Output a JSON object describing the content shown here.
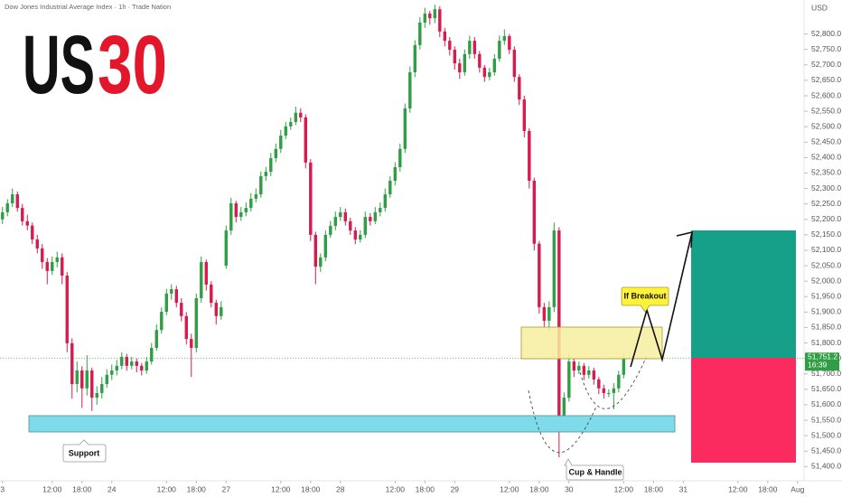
{
  "chart_data": {
    "type": "candlestick",
    "title": "Dow Jones Industrial Average Index · 1h · Trade Nation",
    "logo": {
      "part1": "US",
      "part2": "30"
    },
    "currency": "USD",
    "up_color": "#2f9e44",
    "down_color": "#d81b4f",
    "candles": [
      [
        52200,
        52240,
        52185,
        52223
      ],
      [
        52223,
        52265,
        52210,
        52252
      ],
      [
        52252,
        52300,
        52240,
        52281
      ],
      [
        52281,
        52290,
        52225,
        52237
      ],
      [
        52237,
        52250,
        52180,
        52194
      ],
      [
        52194,
        52215,
        52165,
        52180
      ],
      [
        52180,
        52190,
        52120,
        52135
      ],
      [
        52135,
        52150,
        52090,
        52106
      ],
      [
        52106,
        52120,
        52040,
        52062
      ],
      [
        52062,
        52075,
        51990,
        52033
      ],
      [
        52033,
        52080,
        52020,
        52062
      ],
      [
        52062,
        52095,
        52045,
        52077
      ],
      [
        52077,
        52090,
        51990,
        52018
      ],
      [
        52018,
        52030,
        51770,
        51799
      ],
      [
        51799,
        51815,
        51620,
        51667
      ],
      [
        51667,
        51740,
        51640,
        51711
      ],
      [
        51711,
        51725,
        51590,
        51653
      ],
      [
        51653,
        51760,
        51630,
        51711
      ],
      [
        51711,
        51720,
        51580,
        51623
      ],
      [
        51623,
        51660,
        51600,
        51638
      ],
      [
        51638,
        51690,
        51620,
        51667
      ],
      [
        51667,
        51715,
        51655,
        51697
      ],
      [
        51697,
        51730,
        51680,
        51711
      ],
      [
        51711,
        51745,
        51695,
        51726
      ],
      [
        51726,
        51770,
        51715,
        51755
      ],
      [
        51755,
        51765,
        51710,
        51726
      ],
      [
        51726,
        51755,
        51715,
        51740
      ],
      [
        51740,
        51750,
        51705,
        51726
      ],
      [
        51726,
        51735,
        51695,
        51711
      ],
      [
        51711,
        51755,
        51700,
        51740
      ],
      [
        51740,
        51800,
        51730,
        51784
      ],
      [
        51784,
        51860,
        51775,
        51842
      ],
      [
        51842,
        51915,
        51830,
        51901
      ],
      [
        51901,
        51975,
        51890,
        51960
      ],
      [
        51960,
        51990,
        51940,
        51974
      ],
      [
        51974,
        51985,
        51915,
        51930
      ],
      [
        51930,
        51945,
        51870,
        51887
      ],
      [
        51887,
        51900,
        51795,
        51813
      ],
      [
        51813,
        51830,
        51690,
        51784
      ],
      [
        51784,
        51960,
        51770,
        51945
      ],
      [
        51945,
        52080,
        51930,
        52062
      ],
      [
        52062,
        52070,
        51970,
        51989
      ],
      [
        51989,
        52000,
        51915,
        51930
      ],
      [
        51930,
        51940,
        51860,
        51887
      ],
      [
        51887,
        51935,
        51875,
        51916
      ],
      [
        52050,
        52180,
        52040,
        52164
      ],
      [
        52164,
        52270,
        52150,
        52252
      ],
      [
        52252,
        52260,
        52190,
        52208
      ],
      [
        52208,
        52240,
        52195,
        52223
      ],
      [
        52223,
        52255,
        52210,
        52237
      ],
      [
        52237,
        52285,
        52225,
        52267
      ],
      [
        52267,
        52300,
        52255,
        52281
      ],
      [
        52281,
        52355,
        52270,
        52340
      ],
      [
        52340,
        52370,
        52325,
        52354
      ],
      [
        52354,
        52415,
        52340,
        52398
      ],
      [
        52398,
        52445,
        52385,
        52428
      ],
      [
        52428,
        52490,
        52415,
        52471
      ],
      [
        52471,
        52515,
        52460,
        52501
      ],
      [
        52501,
        52530,
        52490,
        52515
      ],
      [
        52515,
        52565,
        52505,
        52545
      ],
      [
        52545,
        52560,
        52515,
        52530
      ],
      [
        52530,
        52540,
        52365,
        52384
      ],
      [
        52384,
        52395,
        52130,
        52150
      ],
      [
        52150,
        52160,
        51990,
        52047
      ],
      [
        52047,
        52090,
        52030,
        52077
      ],
      [
        52077,
        52165,
        52065,
        52150
      ],
      [
        52150,
        52195,
        52140,
        52179
      ],
      [
        52179,
        52225,
        52165,
        52208
      ],
      [
        52208,
        52240,
        52195,
        52223
      ],
      [
        52223,
        52235,
        52180,
        52194
      ],
      [
        52194,
        52205,
        52150,
        52164
      ],
      [
        52164,
        52175,
        52120,
        52135
      ],
      [
        52135,
        52165,
        52125,
        52150
      ],
      [
        52150,
        52225,
        52140,
        52208
      ],
      [
        52208,
        52220,
        52180,
        52194
      ],
      [
        52194,
        52240,
        52185,
        52223
      ],
      [
        52223,
        52255,
        52210,
        52237
      ],
      [
        52237,
        52300,
        52225,
        52281
      ],
      [
        52281,
        52340,
        52270,
        52325
      ],
      [
        52325,
        52385,
        52310,
        52369
      ],
      [
        52369,
        52445,
        52355,
        52428
      ],
      [
        52428,
        52575,
        52415,
        52559
      ],
      [
        52559,
        52695,
        52545,
        52676
      ],
      [
        52676,
        52780,
        52660,
        52764
      ],
      [
        52764,
        52855,
        52750,
        52837
      ],
      [
        52837,
        52885,
        52820,
        52866
      ],
      [
        52866,
        52875,
        52830,
        52851
      ],
      [
        52851,
        52895,
        52835,
        52880
      ],
      [
        52880,
        52890,
        52790,
        52808
      ],
      [
        52808,
        52820,
        52760,
        52778
      ],
      [
        52778,
        52790,
        52730,
        52749
      ],
      [
        52749,
        52760,
        52685,
        52705
      ],
      [
        52705,
        52720,
        52655,
        52676
      ],
      [
        52676,
        52750,
        52665,
        52735
      ],
      [
        52735,
        52795,
        52720,
        52778
      ],
      [
        52778,
        52790,
        52720,
        52735
      ],
      [
        52735,
        52745,
        52675,
        52691
      ],
      [
        52691,
        52700,
        52645,
        52661
      ],
      [
        52661,
        52690,
        52650,
        52676
      ],
      [
        52676,
        52735,
        52665,
        52720
      ],
      [
        52720,
        52795,
        52710,
        52778
      ],
      [
        52778,
        52815,
        52765,
        52793
      ],
      [
        52793,
        52800,
        52735,
        52749
      ],
      [
        52749,
        52760,
        52645,
        52661
      ],
      [
        52661,
        52670,
        52570,
        52588
      ],
      [
        52588,
        52600,
        52465,
        52486
      ],
      [
        52486,
        52495,
        52300,
        52325
      ],
      [
        52325,
        52335,
        52100,
        52121
      ],
      [
        52121,
        52130,
        51895,
        51916
      ],
      [
        51916,
        51930,
        51850,
        51872
      ],
      [
        51872,
        51935,
        51840,
        51916
      ],
      [
        51916,
        52190,
        51900,
        52164
      ],
      [
        52164,
        52175,
        51430,
        51550
      ],
      [
        51550,
        51640,
        51520,
        51623
      ],
      [
        51623,
        51760,
        51610,
        51740
      ],
      [
        51740,
        51750,
        51690,
        51711
      ],
      [
        51711,
        51740,
        51700,
        51726
      ],
      [
        51726,
        51735,
        51680,
        51697
      ],
      [
        51697,
        51725,
        51685,
        51711
      ],
      [
        51711,
        51720,
        51665,
        51682
      ],
      [
        51682,
        51690,
        51635,
        51653
      ],
      [
        51653,
        51665,
        51620,
        51638
      ],
      [
        51638,
        51650,
        51625,
        51638
      ],
      [
        51638,
        51670,
        51585,
        51653
      ],
      [
        51653,
        51710,
        51640,
        51697
      ],
      [
        51697,
        51765,
        51685,
        51751.2
      ]
    ],
    "last_price": {
      "value": 51751.2,
      "label": "51,751.2"
    },
    "countdown": "16:39",
    "xlim": [
      -0.5,
      161.3
    ],
    "xticks": [
      {
        "value": 0,
        "label": "3"
      },
      {
        "value": 10,
        "label": "12:00"
      },
      {
        "value": 16,
        "label": "18:00"
      },
      {
        "value": 22,
        "label": "24"
      },
      {
        "value": 33,
        "label": "12:00"
      },
      {
        "value": 39,
        "label": "18:00"
      },
      {
        "value": 45,
        "label": "27"
      },
      {
        "value": 56,
        "label": "12:00"
      },
      {
        "value": 62,
        "label": "18:00"
      },
      {
        "value": 68,
        "label": "28"
      },
      {
        "value": 79,
        "label": "12:00"
      },
      {
        "value": 85,
        "label": "18:00"
      },
      {
        "value": 91,
        "label": "29"
      },
      {
        "value": 102,
        "label": "12:00"
      },
      {
        "value": 108,
        "label": "18:00"
      },
      {
        "value": 114,
        "label": "30"
      },
      {
        "value": 125,
        "label": "12:00"
      },
      {
        "value": 131,
        "label": "18:00"
      },
      {
        "value": 137,
        "label": "31"
      },
      {
        "value": 148,
        "label": "12:00"
      },
      {
        "value": 154,
        "label": "18:00"
      },
      {
        "value": 160,
        "label": "Aug"
      }
    ],
    "ylim": [
      51360,
      52910
    ],
    "yticks": [
      {
        "value": 51400,
        "label": "51,400.0"
      },
      {
        "value": 51450,
        "label": "51,450.0"
      },
      {
        "value": 51500,
        "label": "51,500.0"
      },
      {
        "value": 51550,
        "label": "51,550.0"
      },
      {
        "value": 51600,
        "label": "51,600.0"
      },
      {
        "value": 51650,
        "label": "51,650.0"
      },
      {
        "value": 51700,
        "label": "51,700.0"
      },
      {
        "value": 51750,
        "label": "51,750.0"
      },
      {
        "value": 51800,
        "label": "51,800.0"
      },
      {
        "value": 51850,
        "label": "51,850.0"
      },
      {
        "value": 51900,
        "label": "51,900.0"
      },
      {
        "value": 51950,
        "label": "51,950.0"
      },
      {
        "value": 52000,
        "label": "52,000.0"
      },
      {
        "value": 52050,
        "label": "52,050.0"
      },
      {
        "value": 52100,
        "label": "52,100.0"
      },
      {
        "value": 52150,
        "label": "52,150.0"
      },
      {
        "value": 52200,
        "label": "52,200.0"
      },
      {
        "value": 52250,
        "label": "52,250.0"
      },
      {
        "value": 52300,
        "label": "52,300.0"
      },
      {
        "value": 52350,
        "label": "52,350.0"
      },
      {
        "value": 52400,
        "label": "52,400.0"
      },
      {
        "value": 52450,
        "label": "52,450.0"
      },
      {
        "value": 52500,
        "label": "52,500.0"
      },
      {
        "value": 52550,
        "label": "52,550.0"
      },
      {
        "value": 52600,
        "label": "52,600.0"
      },
      {
        "value": 52650,
        "label": "52,650.0"
      },
      {
        "value": 52700,
        "label": "52,700.0"
      },
      {
        "value": 52750,
        "label": "52,750.0"
      },
      {
        "value": 52800,
        "label": "52,800.0"
      }
    ],
    "annotations": {
      "support": "Support",
      "pattern": "Cup & Handle",
      "breakout": "If Breakout"
    }
  }
}
